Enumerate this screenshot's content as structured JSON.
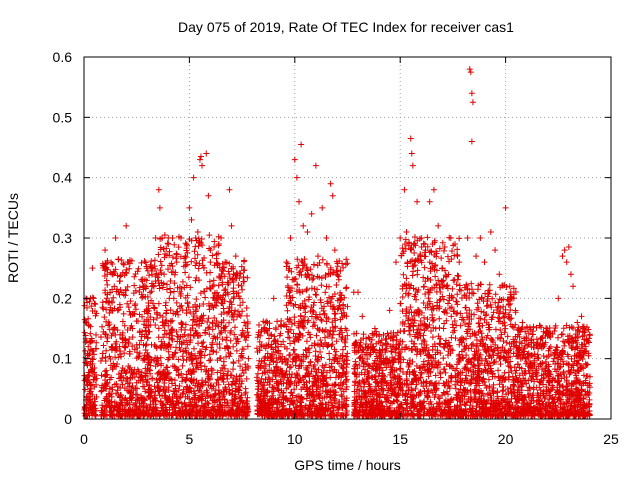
{
  "chart_data": {
    "type": "scatter",
    "title": "Day 075 of 2019, Rate Of TEC Index for receiver cas1",
    "xlabel": "GPS time / hours",
    "ylabel": "ROTI / TECUs",
    "xlim": [
      0,
      25
    ],
    "ylim": [
      0,
      0.6
    ],
    "x_ticks": [
      0,
      5,
      10,
      15,
      20,
      25
    ],
    "x_tick_labels": [
      "0",
      "5",
      "10",
      "15",
      "20",
      "25"
    ],
    "y_ticks": [
      0,
      0.1,
      0.2,
      0.3,
      0.4,
      0.5,
      0.6
    ],
    "y_tick_labels": [
      "0",
      "0.1",
      "0.2",
      "0.3",
      "0.4",
      "0.5",
      "0.6"
    ],
    "grid": true,
    "marker": "+",
    "color": "#e00000",
    "series": [
      {
        "name": "ROTI",
        "note": "dense per-satellite scatter; representative points estimated from the figure",
        "points": [
          [
            0.1,
            0.16
          ],
          [
            0.2,
            0.12
          ],
          [
            0.3,
            0.05
          ],
          [
            0.4,
            0.25
          ],
          [
            0.45,
            0.2
          ],
          [
            0.3,
            0.03
          ],
          [
            1.0,
            0.28
          ],
          [
            1.1,
            0.24
          ],
          [
            1.3,
            0.12
          ],
          [
            1.5,
            0.3
          ],
          [
            1.6,
            0.18
          ],
          [
            1.8,
            0.08
          ],
          [
            2.0,
            0.32
          ],
          [
            2.1,
            0.26
          ],
          [
            2.3,
            0.15
          ],
          [
            2.5,
            0.06
          ],
          [
            2.8,
            0.22
          ],
          [
            3.0,
            0.18
          ],
          [
            3.2,
            0.25
          ],
          [
            3.4,
            0.3
          ],
          [
            3.55,
            0.38
          ],
          [
            3.6,
            0.35
          ],
          [
            3.7,
            0.3
          ],
          [
            3.8,
            0.24
          ],
          [
            4.0,
            0.29
          ],
          [
            4.2,
            0.3
          ],
          [
            4.4,
            0.26
          ],
          [
            4.6,
            0.3
          ],
          [
            4.8,
            0.27
          ],
          [
            5.0,
            0.35
          ],
          [
            5.1,
            0.33
          ],
          [
            5.2,
            0.4
          ],
          [
            5.3,
            0.3
          ],
          [
            5.4,
            0.31
          ],
          [
            5.5,
            0.43
          ],
          [
            5.55,
            0.435
          ],
          [
            5.6,
            0.42
          ],
          [
            5.8,
            0.44
          ],
          [
            5.9,
            0.37
          ],
          [
            6.0,
            0.28
          ],
          [
            6.1,
            0.22
          ],
          [
            6.3,
            0.2
          ],
          [
            6.5,
            0.3
          ],
          [
            6.7,
            0.26
          ],
          [
            6.9,
            0.38
          ],
          [
            7.0,
            0.32
          ],
          [
            7.2,
            0.27
          ],
          [
            7.4,
            0.2
          ],
          [
            7.6,
            0.16
          ],
          [
            7.8,
            0.1
          ],
          [
            8.2,
            0.04
          ],
          [
            8.4,
            0.12
          ],
          [
            8.6,
            0.16
          ],
          [
            8.8,
            0.15
          ],
          [
            9.0,
            0.2
          ],
          [
            9.2,
            0.12
          ],
          [
            9.4,
            0.08
          ],
          [
            9.6,
            0.26
          ],
          [
            9.8,
            0.3
          ],
          [
            10.0,
            0.43
          ],
          [
            10.1,
            0.4
          ],
          [
            10.2,
            0.36
          ],
          [
            10.3,
            0.455
          ],
          [
            10.4,
            0.32
          ],
          [
            10.6,
            0.31
          ],
          [
            10.8,
            0.34
          ],
          [
            11.0,
            0.42
          ],
          [
            11.1,
            0.27
          ],
          [
            11.3,
            0.35
          ],
          [
            11.5,
            0.3
          ],
          [
            11.7,
            0.39
          ],
          [
            11.8,
            0.37
          ],
          [
            11.9,
            0.28
          ],
          [
            12.0,
            0.24
          ],
          [
            12.2,
            0.15
          ],
          [
            12.4,
            0.12
          ],
          [
            12.8,
            0.21
          ],
          [
            13.0,
            0.21
          ],
          [
            13.2,
            0.17
          ],
          [
            13.5,
            0.12
          ],
          [
            13.8,
            0.15
          ],
          [
            14.0,
            0.14
          ],
          [
            14.2,
            0.1
          ],
          [
            14.5,
            0.18
          ],
          [
            14.8,
            0.26
          ],
          [
            15.0,
            0.3
          ],
          [
            15.2,
            0.38
          ],
          [
            15.3,
            0.31
          ],
          [
            15.5,
            0.465
          ],
          [
            15.55,
            0.44
          ],
          [
            15.6,
            0.42
          ],
          [
            15.8,
            0.36
          ],
          [
            16.0,
            0.3
          ],
          [
            16.2,
            0.28
          ],
          [
            16.4,
            0.36
          ],
          [
            16.6,
            0.38
          ],
          [
            16.8,
            0.32
          ],
          [
            17.0,
            0.25
          ],
          [
            17.2,
            0.22
          ],
          [
            17.4,
            0.3
          ],
          [
            17.6,
            0.29
          ],
          [
            17.8,
            0.26
          ],
          [
            18.3,
            0.58
          ],
          [
            18.35,
            0.575
          ],
          [
            18.4,
            0.54
          ],
          [
            18.45,
            0.525
          ],
          [
            18.4,
            0.46
          ],
          [
            18.2,
            0.3
          ],
          [
            18.6,
            0.27
          ],
          [
            18.8,
            0.3
          ],
          [
            19.0,
            0.26
          ],
          [
            19.3,
            0.31
          ],
          [
            19.5,
            0.28
          ],
          [
            19.7,
            0.24
          ],
          [
            20.0,
            0.35
          ],
          [
            20.2,
            0.22
          ],
          [
            20.4,
            0.12
          ],
          [
            20.6,
            0.14
          ],
          [
            20.8,
            0.16
          ],
          [
            21.0,
            0.13
          ],
          [
            21.3,
            0.14
          ],
          [
            21.5,
            0.1
          ],
          [
            21.8,
            0.12
          ],
          [
            22.0,
            0.08
          ],
          [
            22.3,
            0.1
          ],
          [
            22.5,
            0.2
          ],
          [
            22.7,
            0.27
          ],
          [
            22.8,
            0.28
          ],
          [
            22.9,
            0.26
          ],
          [
            23.0,
            0.285
          ],
          [
            23.1,
            0.24
          ],
          [
            23.2,
            0.22
          ],
          [
            23.4,
            0.16
          ],
          [
            23.6,
            0.17
          ],
          [
            23.8,
            0.12
          ],
          [
            24.0,
            0.07
          ]
        ],
        "density_segments": [
          {
            "x_range": [
              0.0,
              0.6
            ],
            "y_max": 0.2
          },
          {
            "x_range": [
              0.8,
              3.4
            ],
            "y_max": 0.26
          },
          {
            "x_range": [
              3.4,
              4.6
            ],
            "y_max": 0.3
          },
          {
            "x_range": [
              4.6,
              6.4
            ],
            "y_max": 0.3
          },
          {
            "x_range": [
              6.4,
              7.8
            ],
            "y_max": 0.26
          },
          {
            "x_range": [
              8.2,
              9.6
            ],
            "y_max": 0.16
          },
          {
            "x_range": [
              9.6,
              12.5
            ],
            "y_max": 0.26
          },
          {
            "x_range": [
              12.8,
              15.0
            ],
            "y_max": 0.14
          },
          {
            "x_range": [
              15.0,
              17.8
            ],
            "y_max": 0.3
          },
          {
            "x_range": [
              17.8,
              20.5
            ],
            "y_max": 0.22
          },
          {
            "x_range": [
              20.5,
              24.0
            ],
            "y_max": 0.15
          }
        ]
      }
    ]
  }
}
